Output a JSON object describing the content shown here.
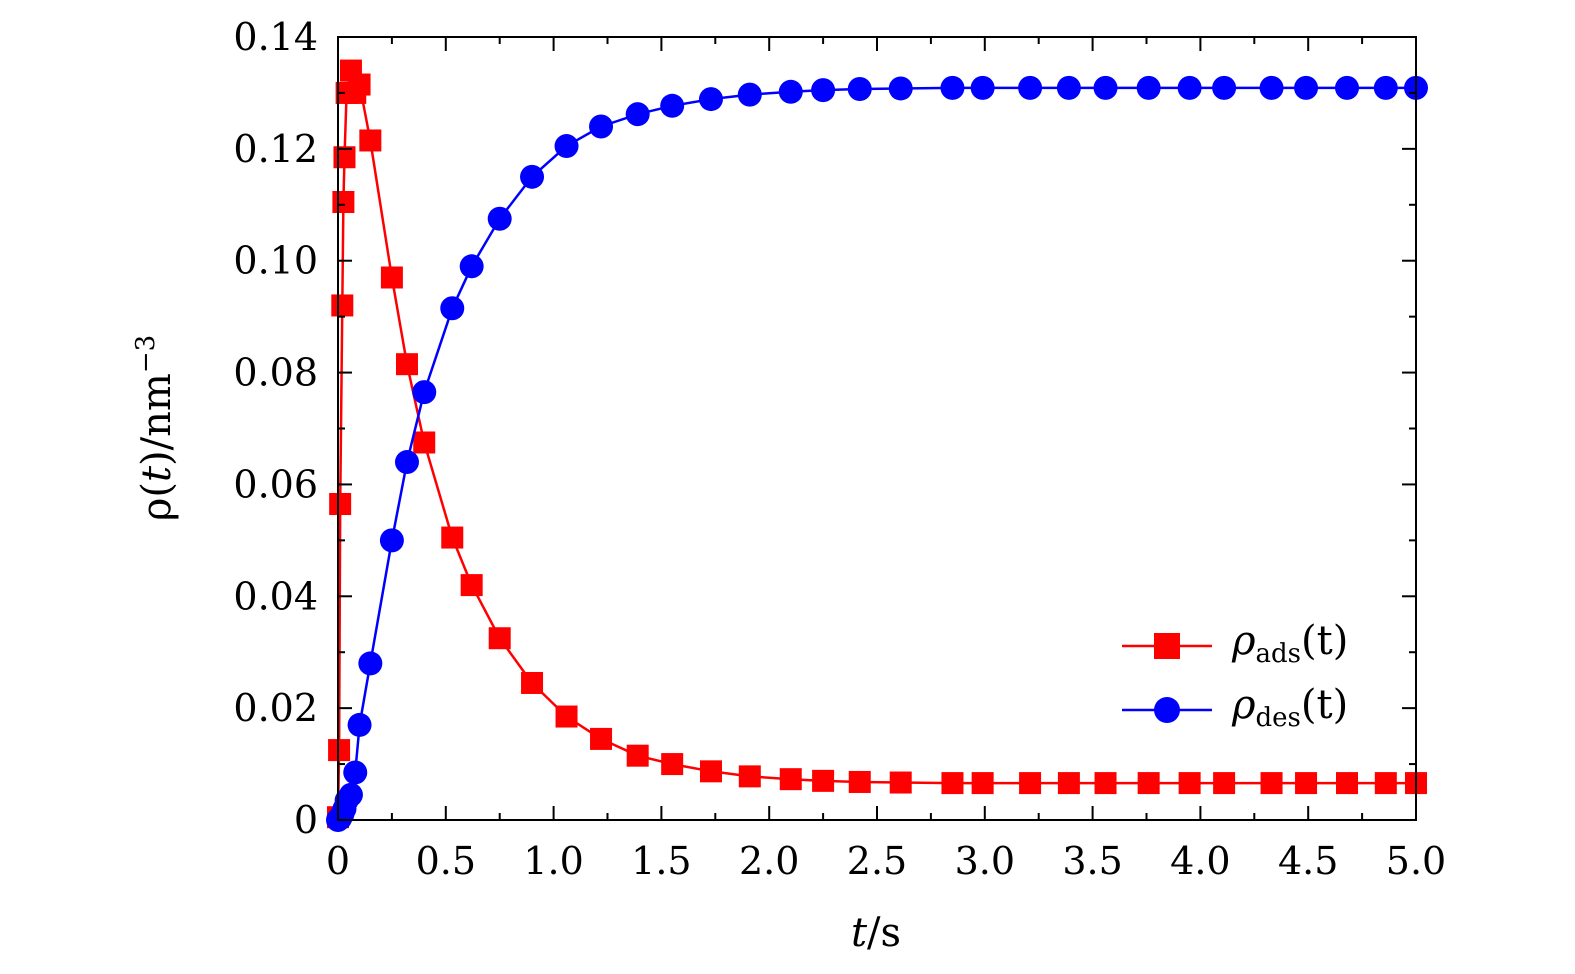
{
  "chart_data": {
    "type": "line",
    "x_axis": {
      "label_italic": "t",
      "label_unit": "/s",
      "lim": [
        0,
        5.0
      ],
      "ticks": [
        0,
        0.5,
        1.0,
        1.5,
        2.0,
        2.5,
        3.0,
        3.5,
        4.0,
        4.5,
        5.0
      ],
      "tick_labels": [
        "0",
        "0.5",
        "1.0",
        "1.5",
        "2.0",
        "2.5",
        "3.0",
        "3.5",
        "4.0",
        "4.5",
        "5.0"
      ]
    },
    "y_axis": {
      "label_prefix": "ρ(",
      "label_italic": "t",
      "label_suffix": ")/nm",
      "label_sup": "−3",
      "lim": [
        0,
        0.14
      ],
      "ticks": [
        0,
        0.02,
        0.04,
        0.06,
        0.08,
        0.1,
        0.12,
        0.14
      ],
      "tick_labels": [
        "0",
        "0.02",
        "0.04",
        "0.06",
        "0.08",
        "0.10",
        "0.12",
        "0.14"
      ]
    },
    "legend_position": "lower-right",
    "grid": false,
    "series": [
      {
        "name": "ρads(t)",
        "legend_symbol": "ρ",
        "legend_sub": "ads",
        "legend_arg": "(t)",
        "color": "#ff0000",
        "marker": "square",
        "x": [
          0,
          0.005,
          0.01,
          0.02,
          0.025,
          0.03,
          0.04,
          0.06,
          0.08,
          0.1,
          0.15,
          0.25,
          0.32,
          0.4,
          0.53,
          0.62,
          0.75,
          0.9,
          1.06,
          1.22,
          1.39,
          1.55,
          1.73,
          1.91,
          2.1,
          2.25,
          2.42,
          2.61,
          2.85,
          2.99,
          3.21,
          3.39,
          3.56,
          3.76,
          3.95,
          4.11,
          4.33,
          4.49,
          4.68,
          4.86,
          5.0
        ],
        "y": [
          0.0005,
          0.0125,
          0.0565,
          0.092,
          0.1105,
          0.1185,
          0.13,
          0.134,
          0.13,
          0.1315,
          0.1215,
          0.097,
          0.0815,
          0.0675,
          0.0505,
          0.042,
          0.0325,
          0.0245,
          0.0185,
          0.0145,
          0.0115,
          0.01,
          0.0087,
          0.0078,
          0.0073,
          0.007,
          0.0068,
          0.0067,
          0.0066,
          0.0066,
          0.0066,
          0.0066,
          0.0066,
          0.0066,
          0.0066,
          0.0066,
          0.0066,
          0.0066,
          0.0066,
          0.0066,
          0.0066
        ]
      },
      {
        "name": "ρdes(t)",
        "legend_symbol": "ρ",
        "legend_sub": "des",
        "legend_arg": "(t)",
        "color": "#0000ff",
        "marker": "circle",
        "x": [
          0,
          0.01,
          0.02,
          0.03,
          0.04,
          0.06,
          0.08,
          0.1,
          0.15,
          0.25,
          0.32,
          0.4,
          0.53,
          0.62,
          0.75,
          0.9,
          1.06,
          1.22,
          1.39,
          1.55,
          1.73,
          1.91,
          2.1,
          2.25,
          2.42,
          2.61,
          2.85,
          2.99,
          3.21,
          3.39,
          3.56,
          3.76,
          3.95,
          4.11,
          4.33,
          4.49,
          4.68,
          4.86,
          5.0
        ],
        "y": [
          0,
          0.0003,
          0.001,
          0.002,
          0.0035,
          0.0045,
          0.0085,
          0.017,
          0.028,
          0.05,
          0.064,
          0.0765,
          0.0915,
          0.099,
          0.1075,
          0.115,
          0.1205,
          0.124,
          0.1262,
          0.1277,
          0.1289,
          0.1297,
          0.1302,
          0.1305,
          0.1307,
          0.1308,
          0.1309,
          0.1309,
          0.1309,
          0.1309,
          0.1309,
          0.1309,
          0.1309,
          0.1309,
          0.1309,
          0.1309,
          0.1309,
          0.1309,
          0.1309
        ]
      }
    ]
  }
}
